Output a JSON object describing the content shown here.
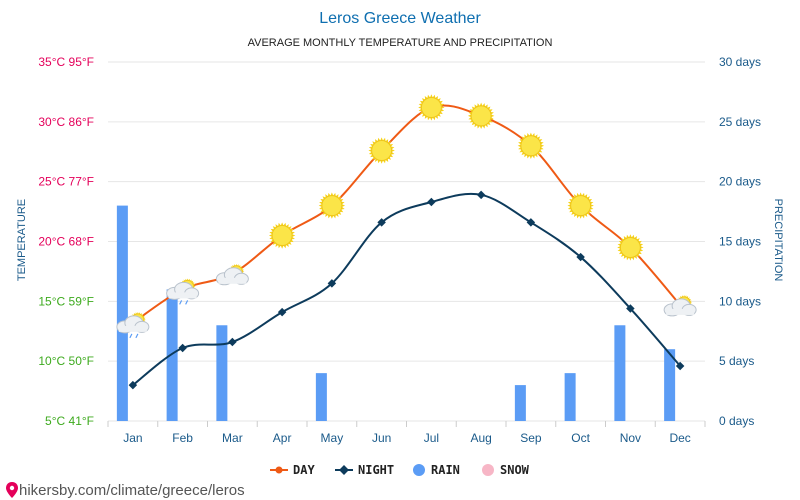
{
  "chart_data": {
    "type": "line",
    "title": "Leros Greece Weather",
    "subtitle": "AVERAGE MONTHLY TEMPERATURE AND PRECIPITATION",
    "categories": [
      "Jan",
      "Feb",
      "Mar",
      "Apr",
      "May",
      "Jun",
      "Jul",
      "Aug",
      "Sep",
      "Oct",
      "Nov",
      "Dec"
    ],
    "series": [
      {
        "name": "DAY",
        "axis": "temperature",
        "unit": "°C",
        "color": "#ef5a15",
        "values": [
          13.2,
          16.0,
          17.3,
          20.5,
          23.0,
          27.6,
          31.2,
          30.5,
          28.0,
          23.0,
          19.5,
          14.7
        ]
      },
      {
        "name": "NIGHT",
        "axis": "temperature",
        "unit": "°C",
        "color": "#0d3b5c",
        "values": [
          8.0,
          11.1,
          11.6,
          14.1,
          16.5,
          21.6,
          23.3,
          23.9,
          21.6,
          18.7,
          14.4,
          9.6
        ]
      },
      {
        "name": "RAIN",
        "axis": "precipitation",
        "unit": "days",
        "color": "#5b9cf5",
        "values": [
          18,
          11,
          8,
          0,
          4,
          0,
          0,
          0,
          3,
          4,
          8,
          6
        ]
      },
      {
        "name": "SNOW",
        "axis": "precipitation",
        "unit": "days",
        "color": "#f7b6c6",
        "values": [
          0,
          0,
          0,
          0,
          0,
          0,
          0,
          0,
          0,
          0,
          0,
          0
        ]
      }
    ],
    "weather_icons": [
      "cloud-sun-rain",
      "cloud-sun-rain",
      "cloud-sun",
      "sun",
      "sun",
      "sun",
      "sun",
      "sun",
      "sun",
      "sun",
      "sun",
      "cloud-sun"
    ],
    "y_left": {
      "label": "TEMPERATURE",
      "range": [
        5,
        35
      ],
      "ticks": [
        {
          "value": 35,
          "label": "35°C 95°F",
          "color": "#e4005a"
        },
        {
          "value": 30,
          "label": "30°C 86°F",
          "color": "#e4005a"
        },
        {
          "value": 25,
          "label": "25°C 77°F",
          "color": "#e4005a"
        },
        {
          "value": 20,
          "label": "20°C 68°F",
          "color": "#e4005a"
        },
        {
          "value": 15,
          "label": "15°C 59°F",
          "color": "#3daa1e"
        },
        {
          "value": 10,
          "label": "10°C 50°F",
          "color": "#3daa1e"
        },
        {
          "value": 5,
          "label": "5°C 41°F",
          "color": "#3daa1e"
        }
      ]
    },
    "y_right": {
      "label": "PRECIPITATION",
      "range": [
        0,
        30
      ],
      "ticks": [
        {
          "value": 30,
          "label": "30 days"
        },
        {
          "value": 25,
          "label": "25 days"
        },
        {
          "value": 20,
          "label": "20 days"
        },
        {
          "value": 15,
          "label": "15 days"
        },
        {
          "value": 10,
          "label": "10 days"
        },
        {
          "value": 5,
          "label": "5 days"
        },
        {
          "value": 0,
          "label": "0 days"
        }
      ]
    },
    "grid": true,
    "legend_position": "bottom-center"
  },
  "footer": {
    "url": "hikersby.com/climate/greece/leros"
  },
  "colors": {
    "title": "#0f6fb0",
    "axis_right": "#1a5a8a",
    "grid": "#e6e6e6",
    "footer_pin": "#e4005a"
  }
}
